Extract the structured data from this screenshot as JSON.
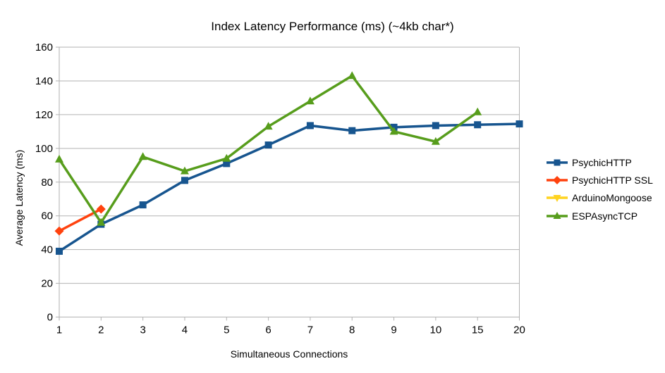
{
  "chart_data": {
    "type": "line",
    "title": "Index Latency Performance (ms) (~4kb char*)",
    "xlabel": "Simultaneous Connections",
    "ylabel": "Average Latency (ms)",
    "ylim": [
      0,
      160
    ],
    "yticks": [
      0,
      20,
      40,
      60,
      80,
      100,
      120,
      140,
      160
    ],
    "categories": [
      "1",
      "2",
      "3",
      "4",
      "5",
      "6",
      "7",
      "8",
      "9",
      "10",
      "15",
      "20"
    ],
    "grid": "horizontal",
    "legend_position": "right",
    "series": [
      {
        "name": "PsychicHTTP",
        "color": "#17558F",
        "marker": "square",
        "values": [
          39,
          55,
          66.5,
          81,
          91,
          102,
          113.5,
          110.5,
          112.5,
          113.5,
          114,
          114.5
        ]
      },
      {
        "name": "PsychicHTTP SSL",
        "color": "#FF420E",
        "marker": "diamond",
        "values": [
          51,
          64,
          null,
          null,
          null,
          null,
          null,
          null,
          null,
          null,
          null,
          null
        ]
      },
      {
        "name": "ArduinoMongoose",
        "color": "#FFD320",
        "marker": "triangle-down",
        "values": [
          null,
          null,
          null,
          null,
          null,
          null,
          null,
          null,
          null,
          null,
          null,
          null
        ]
      },
      {
        "name": "ESPAsyncTCP",
        "color": "#579D1C",
        "marker": "triangle-up",
        "values": [
          93.5,
          56,
          95,
          86.5,
          94,
          113,
          128,
          143,
          110,
          104,
          121.5,
          null
        ]
      }
    ]
  },
  "colors": {
    "background": "#FFFFFF",
    "gridline": "#B2B2B2",
    "axis": "#B2B2B2",
    "text": "#000000"
  }
}
